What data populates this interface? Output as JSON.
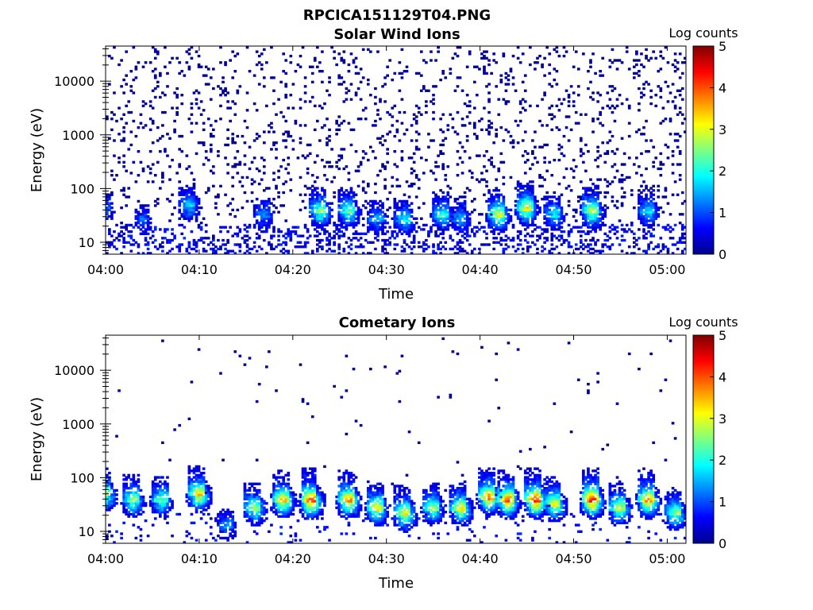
{
  "figure_title": "RPCICA151129T04.PNG",
  "chart_data": [
    {
      "type": "heatmap",
      "title": "Solar Wind Ions",
      "xlabel": "Time",
      "ylabel": "Energy (eV)",
      "y_scale": "log",
      "ylim": [
        6,
        45000
      ],
      "xlim": [
        "04:00",
        "05:02"
      ],
      "x_ticks": [
        "04:00",
        "04:10",
        "04:20",
        "04:30",
        "04:40",
        "04:50",
        "05:00"
      ],
      "y_ticks": [
        "10",
        "100",
        "1000",
        "10000"
      ],
      "colorbar": {
        "label": "Log counts",
        "range": [
          0,
          5
        ],
        "ticks": [
          "0",
          "1",
          "2",
          "3",
          "4",
          "5"
        ],
        "colormap": "jet"
      },
      "background_scatter": "sparse single counts (log ~0) from ~6 eV to ~30000 eV across the full interval",
      "features": [
        {
          "time": "04:00",
          "energy_eV": 40,
          "log_counts": 0.8
        },
        {
          "time": "04:04",
          "energy_eV": 25,
          "log_counts": 0.8
        },
        {
          "time": "04:09",
          "energy_eV": 45,
          "log_counts": 1.3
        },
        {
          "time": "04:17",
          "energy_eV": 30,
          "log_counts": 1.0
        },
        {
          "time": "04:23",
          "energy_eV": 35,
          "log_counts": 2.0
        },
        {
          "time": "04:26",
          "energy_eV": 35,
          "log_counts": 1.8
        },
        {
          "time": "04:29",
          "energy_eV": 25,
          "log_counts": 1.2
        },
        {
          "time": "04:32",
          "energy_eV": 25,
          "log_counts": 1.4
        },
        {
          "time": "04:36",
          "energy_eV": 30,
          "log_counts": 1.6
        },
        {
          "time": "04:38",
          "energy_eV": 25,
          "log_counts": 1.2
        },
        {
          "time": "04:42",
          "energy_eV": 30,
          "log_counts": 2.2
        },
        {
          "time": "04:45",
          "energy_eV": 40,
          "log_counts": 2.3
        },
        {
          "time": "04:48",
          "energy_eV": 30,
          "log_counts": 1.4
        },
        {
          "time": "04:52",
          "energy_eV": 35,
          "log_counts": 2.2
        },
        {
          "time": "04:58",
          "energy_eV": 35,
          "log_counts": 1.4
        }
      ]
    },
    {
      "type": "heatmap",
      "title": "Cometary Ions",
      "xlabel": "Time",
      "ylabel": "Energy (eV)",
      "y_scale": "log",
      "ylim": [
        6,
        45000
      ],
      "xlim": [
        "04:00",
        "05:02"
      ],
      "x_ticks": [
        "04:00",
        "04:10",
        "04:20",
        "04:30",
        "04:40",
        "04:50",
        "05:00"
      ],
      "y_ticks": [
        "10",
        "100",
        "1000",
        "10000"
      ],
      "colorbar": {
        "label": "Log counts",
        "range": [
          0,
          5
        ],
        "ticks": [
          "0",
          "1",
          "2",
          "3",
          "4",
          "5"
        ],
        "colormap": "jet"
      },
      "background_scatter": "very sparse single counts above ~200 eV",
      "features": [
        {
          "time": "04:00",
          "energy_eV": 45,
          "log_counts": 2.0
        },
        {
          "time": "04:03",
          "energy_eV": 35,
          "log_counts": 2.0
        },
        {
          "time": "04:06",
          "energy_eV": 35,
          "log_counts": 1.8
        },
        {
          "time": "04:10",
          "energy_eV": 45,
          "log_counts": 2.6
        },
        {
          "time": "04:13",
          "energy_eV": 12,
          "log_counts": 1.0
        },
        {
          "time": "04:16",
          "energy_eV": 25,
          "log_counts": 2.0
        },
        {
          "time": "04:19",
          "energy_eV": 35,
          "log_counts": 2.6
        },
        {
          "time": "04:22",
          "energy_eV": 35,
          "log_counts": 3.2
        },
        {
          "time": "04:26",
          "energy_eV": 35,
          "log_counts": 2.8
        },
        {
          "time": "04:29",
          "energy_eV": 25,
          "log_counts": 2.4
        },
        {
          "time": "04:32",
          "energy_eV": 20,
          "log_counts": 2.4
        },
        {
          "time": "04:35",
          "energy_eV": 25,
          "log_counts": 2.0
        },
        {
          "time": "04:38",
          "energy_eV": 25,
          "log_counts": 2.4
        },
        {
          "time": "04:41",
          "energy_eV": 40,
          "log_counts": 2.8
        },
        {
          "time": "04:43",
          "energy_eV": 35,
          "log_counts": 3.0
        },
        {
          "time": "04:46",
          "energy_eV": 35,
          "log_counts": 3.3
        },
        {
          "time": "04:48",
          "energy_eV": 30,
          "log_counts": 2.4
        },
        {
          "time": "04:52",
          "energy_eV": 35,
          "log_counts": 3.3
        },
        {
          "time": "04:55",
          "energy_eV": 25,
          "log_counts": 2.2
        },
        {
          "time": "04:58",
          "energy_eV": 35,
          "log_counts": 2.8
        },
        {
          "time": "05:01",
          "energy_eV": 20,
          "log_counts": 2.0
        }
      ]
    }
  ]
}
